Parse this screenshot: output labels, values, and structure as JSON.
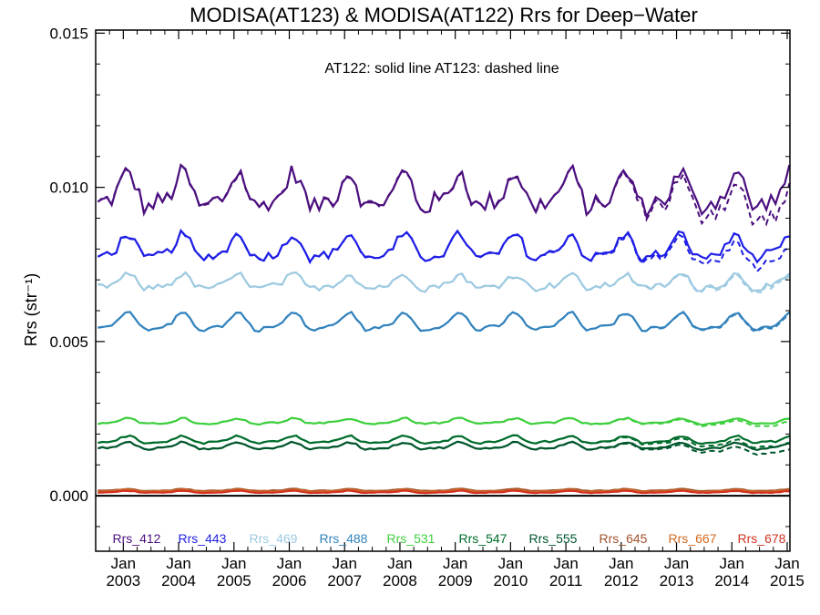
{
  "chart_data": {
    "type": "line",
    "title": "MODISA(AT123) & MODISA(AT122)  Rrs for Deep−Water",
    "annotation": "AT122: solid line   AT123: dashed line",
    "ylabel": "Rrs (str⁻¹)",
    "ylim": [
      -0.0018,
      0.0151
    ],
    "xlim": [
      2002.5,
      2015.05
    ],
    "yticks": [
      0.0,
      0.005,
      0.01,
      0.015
    ],
    "ytick_labels": [
      "0.000",
      "0.005",
      "0.010",
      "0.015"
    ],
    "xticks": [
      2003,
      2004,
      2005,
      2006,
      2007,
      2008,
      2009,
      2010,
      2011,
      2012,
      2013,
      2014,
      2015
    ],
    "xtick_month": "Jan",
    "xtick_years": [
      "2003",
      "2004",
      "2005",
      "2006",
      "2007",
      "2008",
      "2009",
      "2010",
      "2011",
      "2012",
      "2013",
      "2014",
      "2015"
    ],
    "zero_line": true,
    "styles": {
      "AT122": "solid",
      "AT123": "dashed"
    },
    "series": [
      {
        "name": "Rrs_412",
        "color": "#4b0f7f",
        "mean": 0.0098,
        "amp": 0.0005,
        "noise": 0.0003,
        "end_sep": 0.0006
      },
      {
        "name": "Rrs_443",
        "color": "#1e1ee6",
        "mean": 0.008,
        "amp": 0.00035,
        "noise": 0.00015,
        "end_sep": 0.0004
      },
      {
        "name": "Rrs_469",
        "color": "#9ecae1",
        "mean": 0.0069,
        "amp": 0.0002,
        "noise": 0.0001,
        "end_sep": 8e-05
      },
      {
        "name": "Rrs_488",
        "color": "#3182bd",
        "mean": 0.0056,
        "amp": 0.00025,
        "noise": 5e-05,
        "end_sep": 5e-05
      },
      {
        "name": "Rrs_531",
        "color": "#3ecf3e",
        "mean": 0.0024,
        "amp": 8e-05,
        "noise": 3e-05,
        "end_sep": 0.0001
      },
      {
        "name": "Rrs_547",
        "color": "#006d2c",
        "mean": 0.0018,
        "amp": 0.0001,
        "noise": 3e-05,
        "end_sep": 0.0002
      },
      {
        "name": "Rrs_555",
        "color": "#00572c",
        "mean": 0.0016,
        "amp": 0.0001,
        "noise": 3e-05,
        "end_sep": 0.0002
      },
      {
        "name": "Rrs_645",
        "color": "#a0522d",
        "mean": 0.00018,
        "amp": 3e-05,
        "noise": 1e-05,
        "end_sep": 1e-05
      },
      {
        "name": "Rrs_667",
        "color": "#d2691e",
        "mean": 0.00015,
        "amp": 3e-05,
        "noise": 1e-05,
        "end_sep": 1e-05
      },
      {
        "name": "Rrs_678",
        "color": "#d23223",
        "mean": 0.00012,
        "amp": 3e-05,
        "noise": 1e-05,
        "end_sep": 1e-05
      }
    ],
    "grid": false,
    "legend_placement": "bottom"
  }
}
